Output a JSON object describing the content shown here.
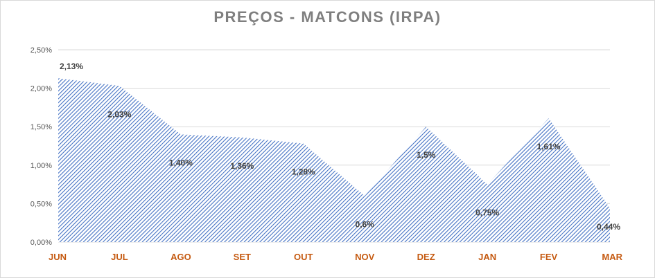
{
  "chart_data": {
    "type": "area",
    "title": "PREÇOS - MATCONS (IRPA)",
    "categories": [
      "JUN",
      "JUL",
      "AGO",
      "SET",
      "OUT",
      "NOV",
      "DEZ",
      "JAN",
      "FEV",
      "MAR"
    ],
    "values": [
      2.13,
      2.03,
      1.4,
      1.36,
      1.28,
      0.6,
      1.5,
      0.75,
      1.61,
      0.44
    ],
    "data_labels": [
      "2,13%",
      "2,03%",
      "1,40%",
      "1,36%",
      "1,28%",
      "0,6%",
      "1,5%",
      "0,75%",
      "1,61%",
      "0,44%"
    ],
    "y_ticks": [
      0,
      0.5,
      1.0,
      1.5,
      2.0,
      2.5
    ],
    "y_tick_labels": [
      "0,00%",
      "0,50%",
      "1,00%",
      "1,50%",
      "2,00%",
      "2,50%"
    ],
    "ylim": [
      0,
      2.5
    ],
    "grid": true,
    "legend": "none",
    "fill_pattern": "diagonal-hatch",
    "colors": {
      "fill": "#4472c4",
      "axis_labels": "#c55a11",
      "title": "#7f7f7f",
      "grid": "#d9d9d9"
    }
  }
}
